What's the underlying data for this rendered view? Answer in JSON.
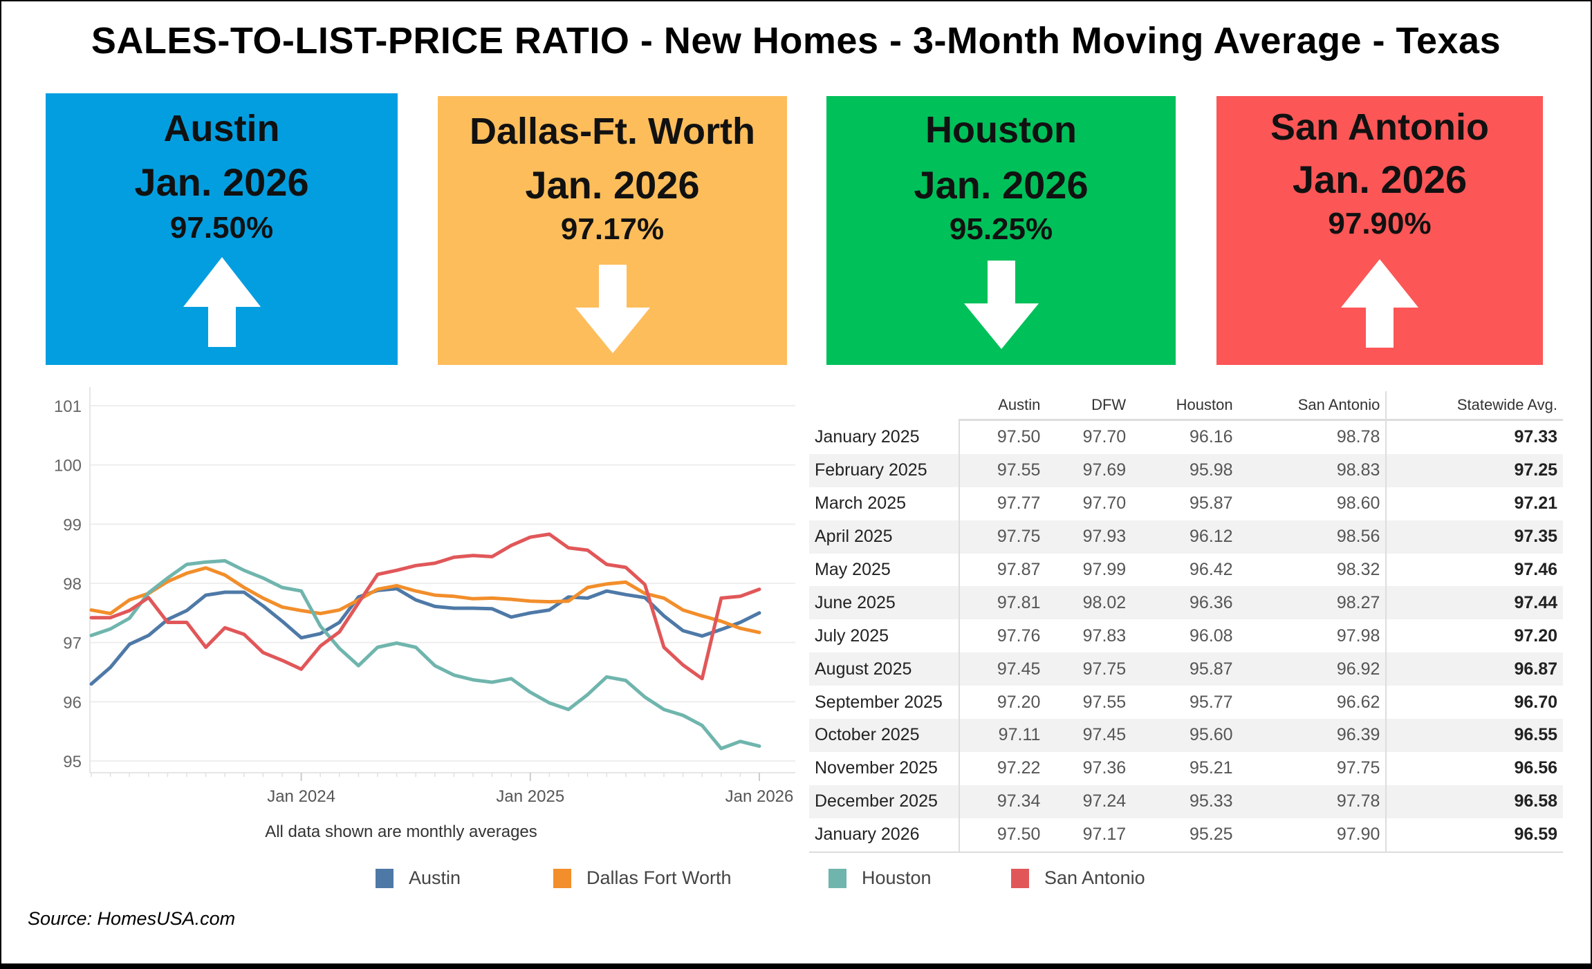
{
  "title": "SALES-TO-LIST-PRICE RATIO - New Homes - 3-Month Moving Average - Texas",
  "cards": [
    {
      "city": "Austin",
      "date": "Jan. 2026",
      "value": "97.50%",
      "trend": "up",
      "color": "#039ee0"
    },
    {
      "city": "Dallas-Ft. Worth",
      "date": "Jan. 2026",
      "value": "97.17%",
      "trend": "down",
      "color": "#fdbd5b"
    },
    {
      "city": "Houston",
      "date": "Jan. 2026",
      "value": "95.25%",
      "trend": "down",
      "color": "#00c05a"
    },
    {
      "city": "San Antonio",
      "date": "Jan. 2026",
      "value": "97.90%",
      "trend": "up",
      "color": "#fc5656"
    }
  ],
  "chart_data": {
    "type": "line",
    "caption": "All data shown are monthly averages",
    "x": [
      "2023-02",
      "2023-03",
      "2023-04",
      "2023-05",
      "2023-06",
      "2023-07",
      "2023-08",
      "2023-09",
      "2023-10",
      "2023-11",
      "2023-12",
      "2024-01",
      "2024-02",
      "2024-03",
      "2024-04",
      "2024-05",
      "2024-06",
      "2024-07",
      "2024-08",
      "2024-09",
      "2024-10",
      "2024-11",
      "2024-12",
      "2025-01",
      "2025-02",
      "2025-03",
      "2025-04",
      "2025-05",
      "2025-06",
      "2025-07",
      "2025-08",
      "2025-09",
      "2025-10",
      "2025-11",
      "2025-12",
      "2026-01"
    ],
    "x_ticks": [
      {
        "x": "2024-01",
        "label": "Jan 2024"
      },
      {
        "x": "2025-01",
        "label": "Jan 2025"
      },
      {
        "x": "2026-01",
        "label": "Jan 2026"
      }
    ],
    "y_ticks": [
      "101",
      "100",
      "99",
      "98",
      "97",
      "96",
      "95"
    ],
    "ylim": [
      95,
      101
    ],
    "grid": true,
    "legend_position": "bottom",
    "series": [
      {
        "name": "Austin",
        "color": "#4e79a7",
        "values": [
          96.3,
          96.58,
          96.97,
          97.12,
          97.39,
          97.54,
          97.8,
          97.85,
          97.85,
          97.62,
          97.36,
          97.08,
          97.15,
          97.34,
          97.77,
          97.88,
          97.91,
          97.72,
          97.61,
          97.58,
          97.58,
          97.57,
          97.43,
          97.5,
          97.55,
          97.77,
          97.75,
          97.87,
          97.81,
          97.76,
          97.45,
          97.2,
          97.11,
          97.22,
          97.34,
          97.5
        ]
      },
      {
        "name": "Dallas Fort Worth",
        "color": "#f28e2b",
        "values": [
          97.55,
          97.49,
          97.72,
          97.83,
          98.03,
          98.17,
          98.26,
          98.14,
          97.93,
          97.75,
          97.6,
          97.54,
          97.49,
          97.55,
          97.72,
          97.9,
          97.96,
          97.87,
          97.8,
          97.78,
          97.74,
          97.75,
          97.73,
          97.7,
          97.69,
          97.7,
          97.93,
          97.99,
          98.02,
          97.83,
          97.75,
          97.55,
          97.45,
          97.36,
          97.24,
          97.17
        ]
      },
      {
        "name": "Houston",
        "color": "#6fb5ad",
        "values": [
          97.12,
          97.23,
          97.41,
          97.84,
          98.09,
          98.32,
          98.36,
          98.38,
          98.22,
          98.09,
          97.93,
          97.87,
          97.28,
          96.9,
          96.61,
          96.92,
          96.99,
          96.92,
          96.61,
          96.45,
          96.37,
          96.33,
          96.39,
          96.16,
          95.98,
          95.87,
          96.12,
          96.42,
          96.36,
          96.08,
          95.87,
          95.77,
          95.6,
          95.21,
          95.33,
          95.25
        ]
      },
      {
        "name": "San Antonio",
        "color": "#e15759",
        "values": [
          97.42,
          97.42,
          97.54,
          97.76,
          97.34,
          97.34,
          96.92,
          97.25,
          97.14,
          96.83,
          96.7,
          96.55,
          96.94,
          97.18,
          97.67,
          98.15,
          98.22,
          98.3,
          98.34,
          98.44,
          98.47,
          98.45,
          98.64,
          98.78,
          98.83,
          98.6,
          98.56,
          98.32,
          98.27,
          97.98,
          96.92,
          96.62,
          96.39,
          97.75,
          97.78,
          97.9
        ]
      }
    ]
  },
  "table": {
    "headers": [
      "",
      "Austin",
      "DFW",
      "Houston",
      "San Antonio",
      "Statewide Avg."
    ],
    "rows": [
      [
        "January 2025",
        "97.50",
        "97.70",
        "96.16",
        "98.78",
        "97.33"
      ],
      [
        "February 2025",
        "97.55",
        "97.69",
        "95.98",
        "98.83",
        "97.25"
      ],
      [
        "March 2025",
        "97.77",
        "97.70",
        "95.87",
        "98.60",
        "97.21"
      ],
      [
        "April 2025",
        "97.75",
        "97.93",
        "96.12",
        "98.56",
        "97.35"
      ],
      [
        "May 2025",
        "97.87",
        "97.99",
        "96.42",
        "98.32",
        "97.46"
      ],
      [
        "June 2025",
        "97.81",
        "98.02",
        "96.36",
        "98.27",
        "97.44"
      ],
      [
        "July 2025",
        "97.76",
        "97.83",
        "96.08",
        "97.98",
        "97.20"
      ],
      [
        "August 2025",
        "97.45",
        "97.75",
        "95.87",
        "96.92",
        "96.87"
      ],
      [
        "September 2025",
        "97.20",
        "97.55",
        "95.77",
        "96.62",
        "96.70"
      ],
      [
        "October 2025",
        "97.11",
        "97.45",
        "95.60",
        "96.39",
        "96.55"
      ],
      [
        "November 2025",
        "97.22",
        "97.36",
        "95.21",
        "97.75",
        "96.56"
      ],
      [
        "December 2025",
        "97.34",
        "97.24",
        "95.33",
        "97.78",
        "96.58"
      ],
      [
        "January 2026",
        "97.50",
        "97.17",
        "95.25",
        "97.90",
        "96.59"
      ]
    ]
  },
  "source": "Source: HomesUSA.com"
}
